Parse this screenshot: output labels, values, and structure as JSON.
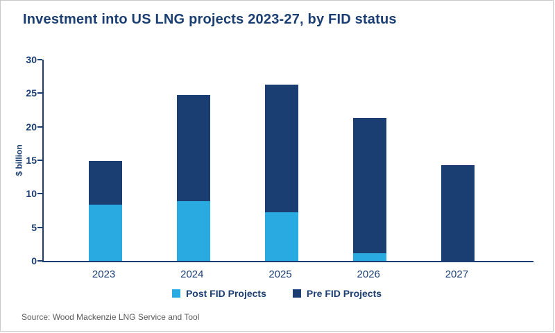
{
  "chart_data": {
    "type": "bar",
    "stacked": true,
    "title": "Investment into US LNG projects 2023-27, by FID status",
    "ylabel": "$ billion",
    "xlabel": "",
    "ylim": [
      0,
      30
    ],
    "yticks": [
      0,
      5,
      10,
      15,
      20,
      25,
      30
    ],
    "grid": false,
    "legend_position": "bottom",
    "categories": [
      "2023",
      "2024",
      "2025",
      "2026",
      "2027"
    ],
    "series": [
      {
        "name": "Post FID Projects",
        "color": "#29abe2",
        "values": [
          8.4,
          8.9,
          7.2,
          1.1,
          0
        ]
      },
      {
        "name": "Pre FID Projects",
        "color": "#1a3e72",
        "values": [
          6.5,
          15.8,
          19.1,
          20.2,
          14.3
        ]
      }
    ],
    "totals": [
      14.9,
      24.7,
      26.3,
      21.3,
      14.3
    ]
  },
  "source": "Source: Wood Mackenzie LNG Service and Tool",
  "colors": {
    "navy": "#1a3e72",
    "light_blue": "#29abe2",
    "axis": "#1a3e72",
    "source_text": "#595959",
    "border": "#c9c9c9"
  }
}
